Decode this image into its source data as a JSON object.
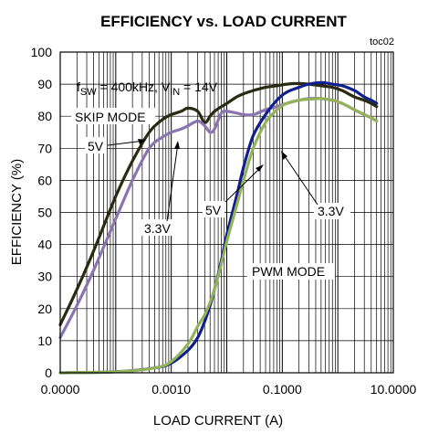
{
  "chart_data": {
    "type": "line",
    "title": "EFFICIENCY vs. LOAD CURRENT",
    "code": "toc02",
    "xlabel": "LOAD CURRENT (A)",
    "ylabel": "EFFICIENCY (%)",
    "x_scale": "log",
    "xlim": [
      1e-05,
      10
    ],
    "ylim": [
      0,
      100
    ],
    "grid": true,
    "x_ticks": [
      {
        "value": 1e-05,
        "label": "0.0000"
      },
      {
        "value": 0.001,
        "label": "0.0010"
      },
      {
        "value": 0.1,
        "label": "0.1000"
      },
      {
        "value": 10,
        "label": "10.0000"
      }
    ],
    "y_ticks": [
      0,
      10,
      20,
      30,
      40,
      50,
      60,
      70,
      80,
      90,
      100
    ],
    "conditions": {
      "main": "f",
      "main_sub": "SW",
      "mid": " = 400kHz, V",
      "mid_sub": "IN",
      "end": " = 14V"
    },
    "annotations": {
      "skip_mode": "SKIP MODE",
      "pwm_mode": "PWM MODE",
      "skip_5v": "5V",
      "skip_3v3": "3.3V",
      "pwm_5v": "5V",
      "pwm_3v3": "3.3V"
    },
    "series": [
      {
        "color": "#2a2a12",
        "x": [
          1e-05,
          2e-05,
          4e-05,
          0.0001,
          0.0002,
          0.0004,
          0.0007,
          0.001,
          0.0015,
          0.002,
          0.003,
          0.004,
          0.005,
          0.006,
          0.008,
          0.01,
          0.015,
          0.02,
          0.03,
          0.05,
          0.08,
          0.12,
          0.2,
          0.3,
          0.5,
          0.8,
          1.2,
          2,
          3,
          4,
          5
        ],
        "y": [
          15,
          26,
          38,
          55,
          66,
          75,
          79,
          80.5,
          81.5,
          82.5,
          81.5,
          78,
          80,
          81.5,
          83,
          84,
          86,
          87,
          88,
          89,
          89.5,
          90,
          90.2,
          90,
          89.5,
          89,
          88,
          86,
          85,
          84,
          83
        ]
      },
      {
        "color": "#8a74b0",
        "x": [
          1e-05,
          2e-05,
          4e-05,
          0.0001,
          0.0002,
          0.0004,
          0.0007,
          0.001,
          0.0015,
          0.002,
          0.003,
          0.004,
          0.005,
          0.006,
          0.008,
          0.01,
          0.015,
          0.02,
          0.03,
          0.05,
          0.08,
          0.12,
          0.2,
          0.3,
          0.5,
          0.8,
          1.2,
          2,
          3,
          4,
          5
        ],
        "y": [
          11,
          21,
          32,
          48,
          60,
          70,
          73.5,
          75,
          76,
          77,
          78.5,
          77,
          75,
          76,
          81,
          81.5,
          81,
          80.5,
          80.5,
          82,
          83,
          84,
          85,
          85.5,
          85.5,
          85,
          84,
          82,
          80.5,
          79.5,
          78.5
        ]
      },
      {
        "color": "#0f1f8c",
        "x": [
          1e-05,
          0.0001,
          0.0005,
          0.001,
          0.002,
          0.003,
          0.004,
          0.005,
          0.006,
          0.008,
          0.01,
          0.015,
          0.02,
          0.03,
          0.05,
          0.08,
          0.12,
          0.2,
          0.3,
          0.5,
          0.8,
          1.2,
          2,
          3,
          4,
          5
        ],
        "y": [
          0,
          0.3,
          1.5,
          3,
          7,
          11,
          16,
          21,
          26,
          35,
          43,
          55,
          64,
          74,
          80.5,
          85,
          87.5,
          89,
          90,
          90.5,
          90,
          89.5,
          88,
          86,
          85,
          84
        ]
      },
      {
        "color": "#93b35a",
        "x": [
          1e-05,
          0.0001,
          0.0005,
          0.001,
          0.002,
          0.003,
          0.004,
          0.005,
          0.006,
          0.008,
          0.01,
          0.015,
          0.02,
          0.03,
          0.05,
          0.08,
          0.12,
          0.2,
          0.3,
          0.5,
          0.8,
          1.2,
          2,
          3,
          4,
          5
        ],
        "y": [
          0,
          0.3,
          1.5,
          3.5,
          9,
          14.5,
          18,
          22,
          26,
          34,
          41,
          52,
          60,
          70,
          78,
          82,
          84,
          85,
          85.3,
          85.5,
          85,
          84,
          82,
          80.5,
          79.5,
          78.5
        ]
      }
    ]
  }
}
